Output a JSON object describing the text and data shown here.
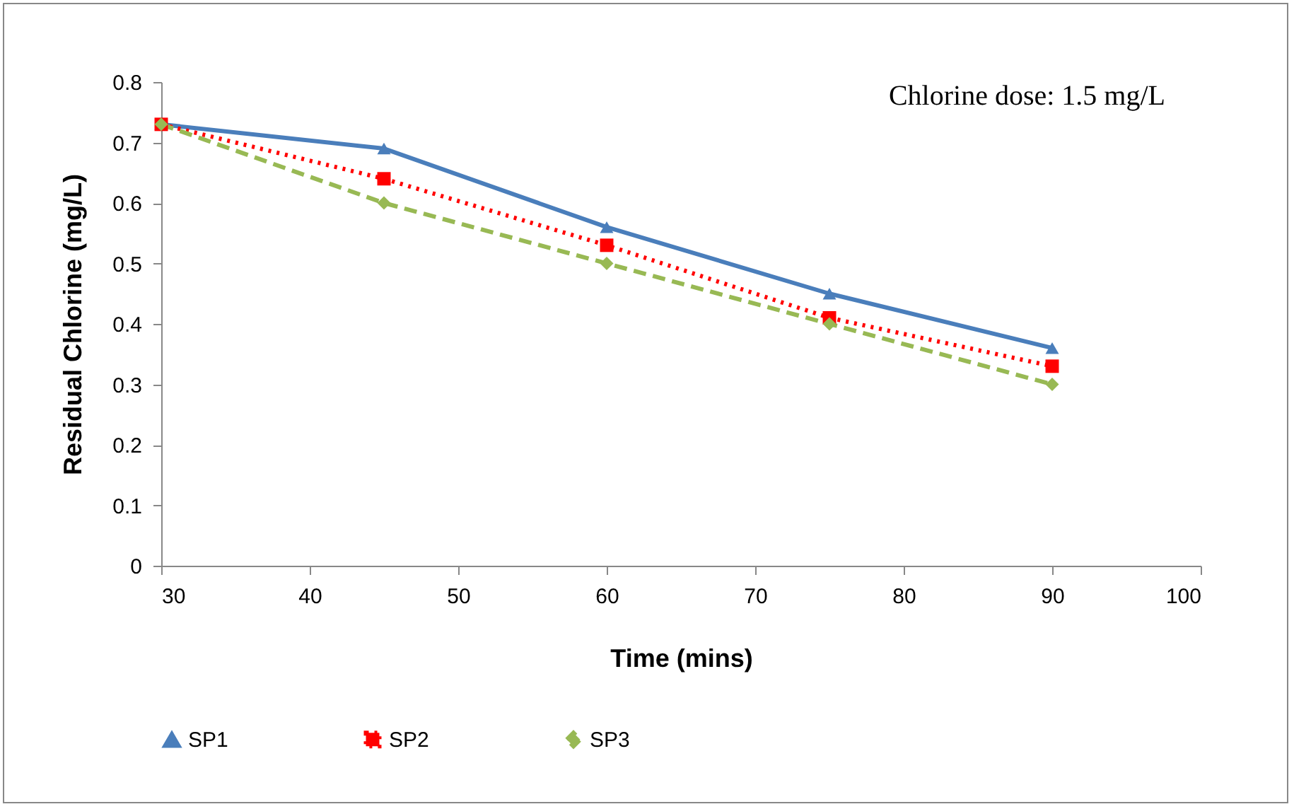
{
  "chart_data": {
    "type": "line",
    "xlabel": "Time (mins)",
    "ylabel": "Residual Chlorine (mg/L)",
    "x": [
      30,
      45,
      60,
      75,
      90
    ],
    "series": [
      {
        "name": "SP1",
        "color": "#4a7ebb",
        "marker": "triangle",
        "line_style": "solid",
        "values": [
          0.73,
          0.69,
          0.56,
          0.45,
          0.36
        ]
      },
      {
        "name": "SP2",
        "color": "#ff0000",
        "marker": "square",
        "line_style": "dotted",
        "values": [
          0.73,
          0.64,
          0.53,
          0.41,
          0.33
        ]
      },
      {
        "name": "SP3",
        "color": "#98b954",
        "marker": "diamond",
        "line_style": "dashed",
        "values": [
          0.73,
          0.6,
          0.5,
          0.4,
          0.3
        ]
      }
    ],
    "xlim": [
      30,
      100
    ],
    "xticks": [
      30,
      40,
      50,
      60,
      70,
      80,
      90,
      100
    ],
    "ylim": [
      0,
      0.8
    ],
    "yticks": [
      0,
      0.1,
      0.2,
      0.3,
      0.4,
      0.5,
      0.6,
      0.7,
      0.8
    ],
    "grid": false,
    "legend": "bottom",
    "annotations": [
      "Chlorine dose: 1.5 mg/L"
    ]
  }
}
